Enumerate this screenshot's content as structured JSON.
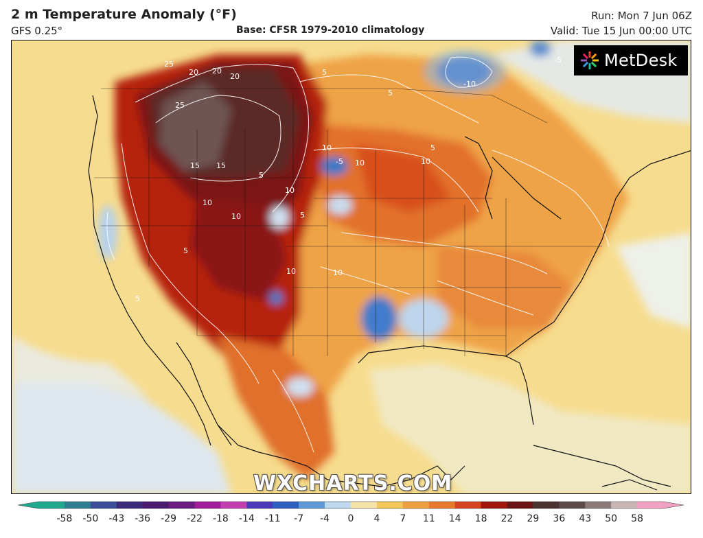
{
  "header": {
    "title": "2 m Temperature Anomaly (°F)",
    "model": "GFS 0.25°",
    "base": "Base: CFSR 1979-2010 climatology",
    "run": "Run: Mon 7 Jun 06Z",
    "valid": "Valid: Tue 15 Jun 00:00 UTC"
  },
  "branding": {
    "logo_text": "MetDesk",
    "logo_icon": "metdesk-star-icon",
    "watermark": "WXCHARTS.COM"
  },
  "map": {
    "region": "North America",
    "contour_labels": [
      "25",
      "20",
      "20",
      "20",
      "25",
      "15",
      "15",
      "10",
      "10",
      "10",
      "10",
      "10",
      "10",
      "10",
      "10",
      "5",
      "5",
      "5",
      "5",
      "5",
      "5",
      "5",
      "-5",
      "-10",
      "-5"
    ]
  },
  "colorbar": {
    "ticks": [
      "-58",
      "-50",
      "-43",
      "-36",
      "-29",
      "-22",
      "-18",
      "-14",
      "-11",
      "-7",
      "-4",
      "0",
      "4",
      "7",
      "11",
      "14",
      "18",
      "22",
      "29",
      "36",
      "43",
      "50",
      "58"
    ],
    "colors": [
      "#1fa88f",
      "#2f7f93",
      "#3b4f99",
      "#3b2a7a",
      "#4a1a6e",
      "#6b1a80",
      "#a11c9a",
      "#c23fb0",
      "#4a3ab8",
      "#2e5fc1",
      "#5f9ad8",
      "#bdd8ee",
      "#f5e3a8",
      "#f3c65a",
      "#eea040",
      "#e57a2a",
      "#d4431c",
      "#a3160e",
      "#6b1614",
      "#4b3332",
      "#5a4a4a",
      "#8a7a7a",
      "#c8b6b6",
      "#f0a0c0"
    ]
  }
}
